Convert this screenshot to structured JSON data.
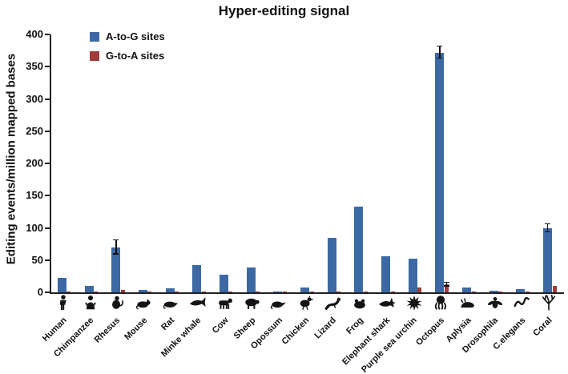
{
  "title": "Hyper-editing signal",
  "ylabel": "Editing events/million mapped bases",
  "legend": {
    "items": [
      {
        "label": "A-to-G sites",
        "color": "#3c69a3"
      },
      {
        "label": "G-to-A sites",
        "color": "#9e3b3b"
      }
    ]
  },
  "chart_data": {
    "type": "bar",
    "categories": [
      "Human",
      "Chimpanzee",
      "Rhesus",
      "Mouse",
      "Rat",
      "Minke whale",
      "Cow",
      "Sheep",
      "Opossum",
      "Chicken",
      "Lizard",
      "Frog",
      "Elephant shark",
      "Purple sea urchin",
      "Octopus",
      "Aplysia",
      "Drosophila",
      "C.elegans",
      "Coral"
    ],
    "icons": [
      "human-icon",
      "chimpanzee-icon",
      "rhesus-icon",
      "mouse-icon",
      "rat-icon",
      "minke-whale-icon",
      "cow-icon",
      "sheep-icon",
      "opossum-icon",
      "chicken-icon",
      "lizard-icon",
      "frog-icon",
      "elephant-shark-icon",
      "purple-sea-urchin-icon",
      "octopus-icon",
      "aplysia-icon",
      "drosophila-icon",
      "c-elegans-icon",
      "coral-icon"
    ],
    "series": [
      {
        "name": "A-to-G sites",
        "color": "#3c69a3",
        "values": [
          22,
          10,
          70,
          4,
          6,
          42,
          27,
          38,
          1,
          7,
          85,
          133,
          56,
          52,
          372,
          7,
          3,
          5,
          99
        ],
        "errors": [
          0,
          0,
          11,
          0,
          0,
          0,
          0,
          0,
          0,
          0,
          0,
          0,
          0,
          0,
          9,
          0,
          0,
          0,
          6
        ]
      },
      {
        "name": "G-to-A sites",
        "color": "#9e3b3b",
        "values": [
          1,
          0.5,
          4,
          1,
          0.5,
          0.5,
          0.5,
          0.5,
          0.5,
          1,
          1,
          1,
          1,
          8,
          12,
          1,
          0.5,
          1,
          10
        ],
        "errors": [
          0,
          0,
          0,
          0,
          0,
          0,
          0,
          0,
          0,
          0,
          0,
          0,
          0,
          0,
          3,
          0,
          0,
          0,
          0
        ]
      }
    ],
    "ylim": [
      0,
      400
    ],
    "yticks": [
      0,
      50,
      100,
      150,
      200,
      250,
      300,
      350,
      400
    ],
    "grid": false,
    "legend_position": "upper-left"
  }
}
